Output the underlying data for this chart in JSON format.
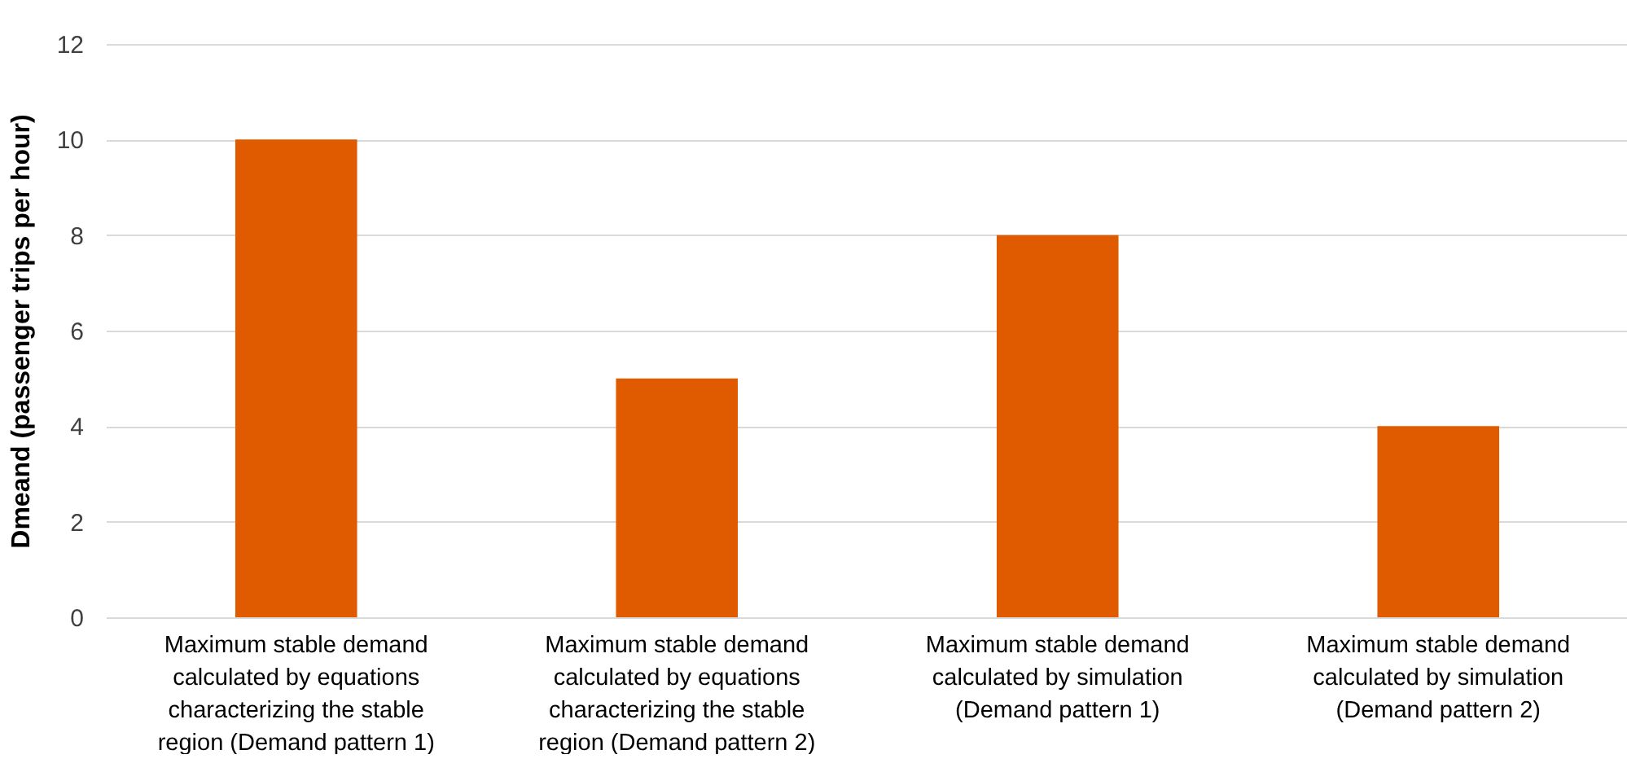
{
  "chart_data": {
    "type": "bar",
    "ylabel": "Dmeand (passenger trips per hour)",
    "categories": [
      "Maximum stable demand calculated by equations characterizing the stable region (Demand pattern 1)",
      "Maximum stable demand calculated by equations characterizing the stable region (Demand pattern 2)",
      "Maximum stable demand calculated by simulation (Demand pattern 1)",
      "Maximum stable demand calculated by simulation (Demand pattern 2)"
    ],
    "values": [
      10,
      5,
      8,
      4
    ],
    "color": "#e05a00",
    "ylim": [
      0,
      12
    ],
    "yticks": [
      0,
      2,
      4,
      6,
      8,
      10,
      12
    ],
    "grid": "y"
  }
}
